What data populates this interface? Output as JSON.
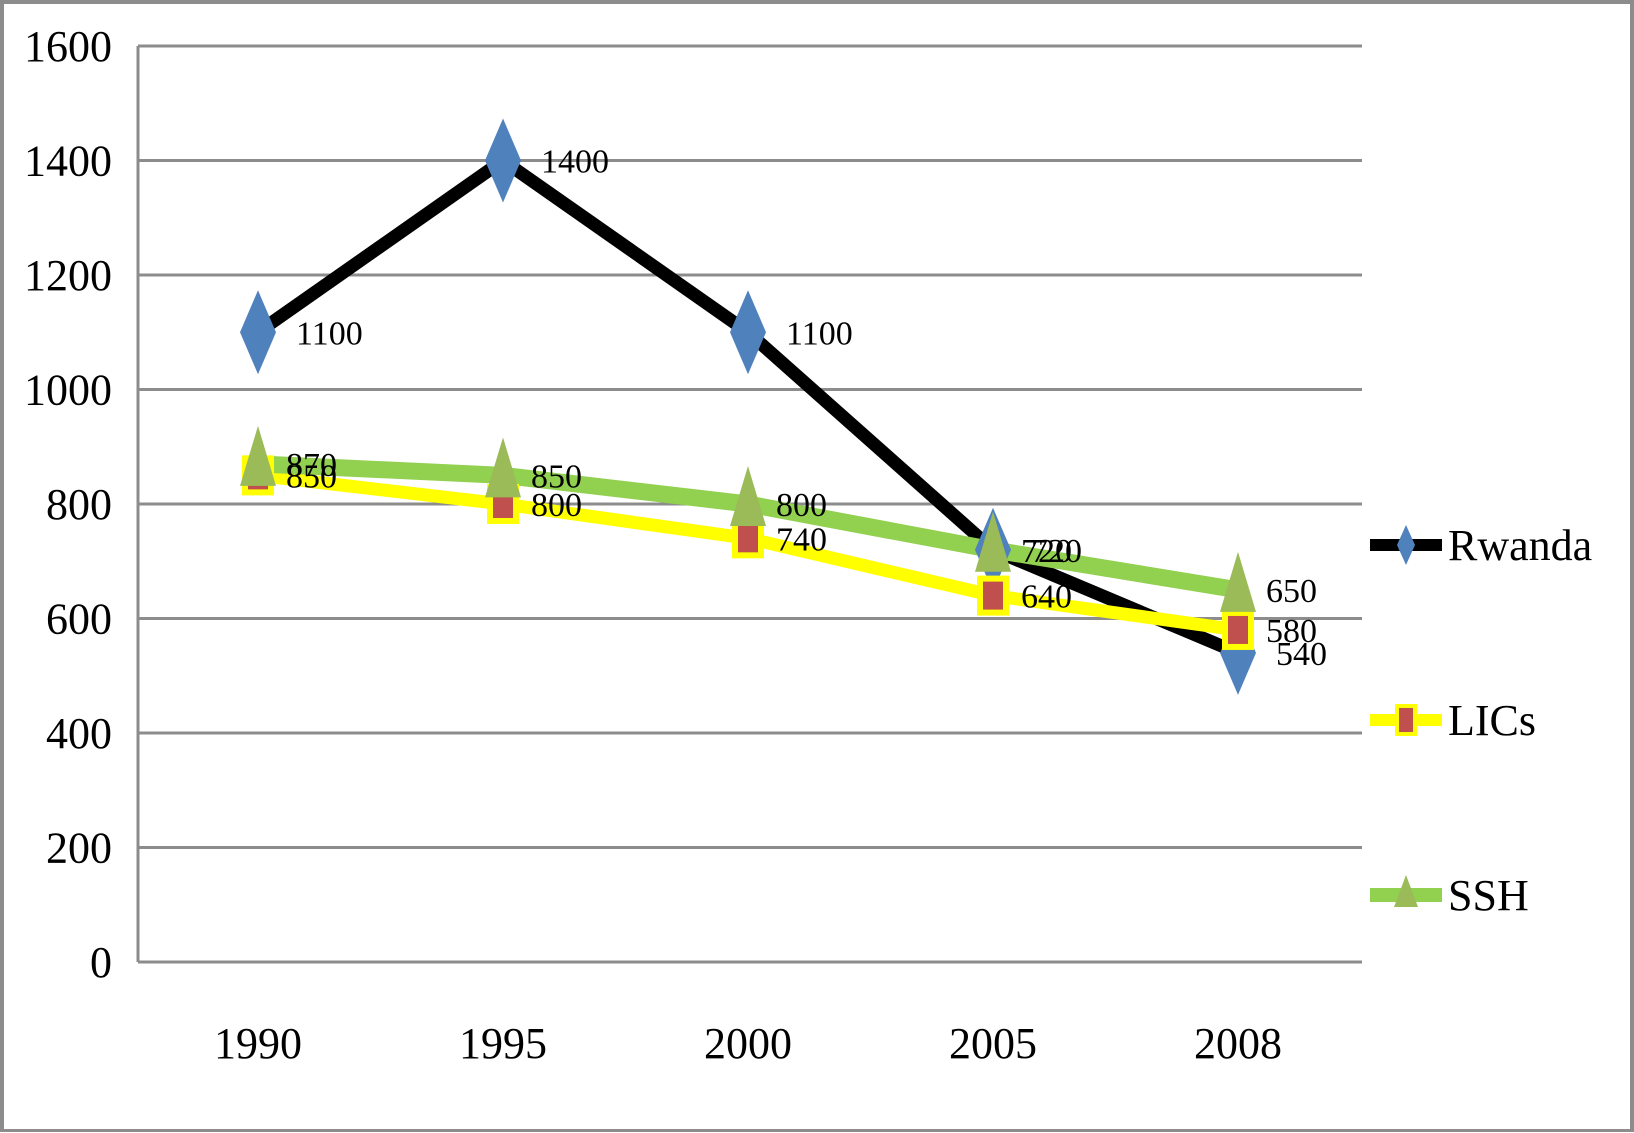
{
  "chart_data": {
    "type": "line",
    "title": "",
    "xlabel": "",
    "ylabel": "",
    "categories": [
      "1990",
      "1995",
      "2000",
      "2005",
      "2008"
    ],
    "y_ticks": [
      "0",
      "200",
      "400",
      "600",
      "800",
      "1000",
      "1200",
      "1400",
      "1600"
    ],
    "ylim": [
      0,
      1600
    ],
    "grid": true,
    "legend_position": "right",
    "series": [
      {
        "name": "Rwanda",
        "values": [
          1100,
          1400,
          1100,
          720,
          540
        ],
        "labels": [
          "1100",
          "1400",
          "1100",
          "720",
          "540"
        ],
        "line_color": "#000000",
        "marker": "diamond",
        "marker_color": "#4f81bd"
      },
      {
        "name": "LICs",
        "values": [
          850,
          800,
          740,
          640,
          580
        ],
        "labels": [
          "850",
          "800",
          "740",
          "640",
          "580"
        ],
        "line_color": "#ffff00",
        "marker": "square",
        "marker_color": "#c0504d"
      },
      {
        "name": "SSH",
        "values": [
          870,
          850,
          800,
          720,
          650
        ],
        "labels": [
          "870",
          "850",
          "800",
          "720",
          "650"
        ],
        "line_color": "#92d050",
        "marker": "triangle",
        "marker_color": "#9bbb59"
      }
    ]
  }
}
